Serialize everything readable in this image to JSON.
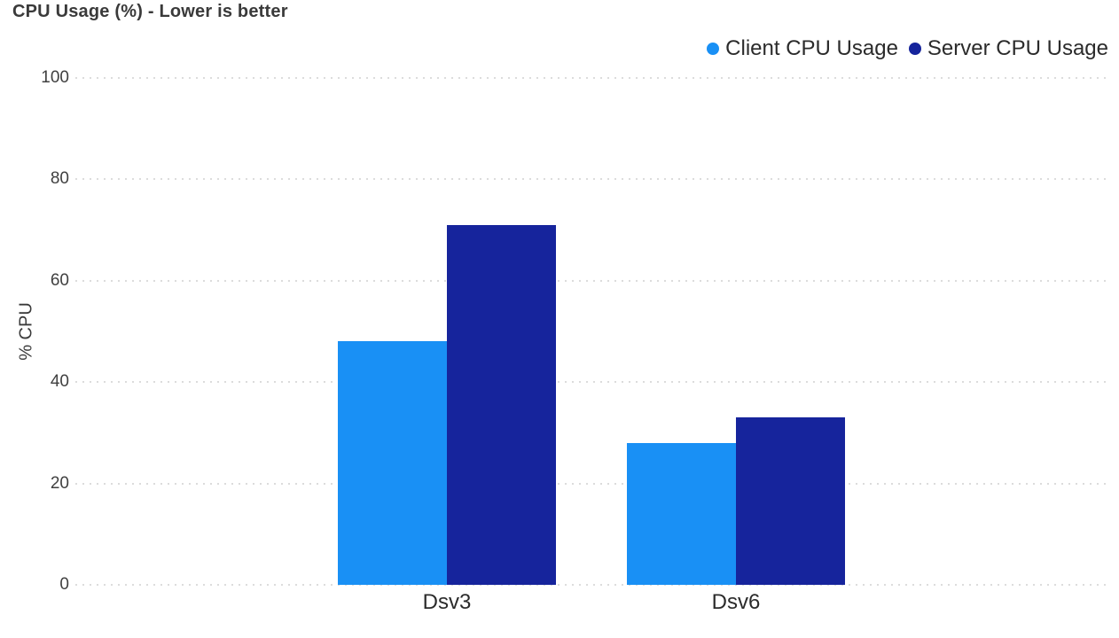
{
  "chart_data": {
    "type": "bar",
    "title": "CPU Usage (%) - Lower is better",
    "categories": [
      "Dsv3",
      "Dsv6"
    ],
    "series": [
      {
        "name": "Client CPU Usage",
        "color": "#1990F5",
        "values": [
          48,
          28
        ]
      },
      {
        "name": "Server CPU Usage",
        "color": "#16249C",
        "values": [
          71,
          33
        ]
      }
    ],
    "xlabel": "",
    "ylabel": "% CPU",
    "ylim": [
      0,
      100
    ],
    "yticks": [
      0,
      20,
      40,
      60,
      80,
      100
    ],
    "grid": "horizontal-dotted",
    "gridline_color": "#dcdcdc",
    "legend_position": "top-right"
  }
}
